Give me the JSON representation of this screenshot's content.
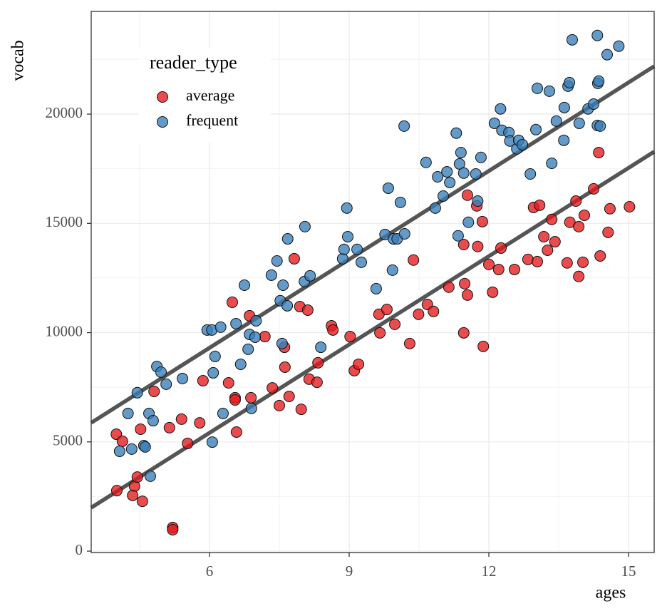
{
  "chart_data": {
    "type": "scatter",
    "x_label": "ages",
    "y_label": "vocab",
    "legend_title": "reader_type",
    "legend": "top-left",
    "xlim": [
      3.46,
      15.55
    ],
    "ylim": [
      -65,
      24700
    ],
    "xticks": [
      6,
      9,
      12,
      15
    ],
    "yticks": [
      0,
      5000,
      10000,
      15000,
      20000
    ],
    "minor_xticks": [
      4.5,
      7.5,
      10.5,
      13.5
    ],
    "minor_yticks": [
      2500,
      7500,
      12500,
      17500,
      22500
    ],
    "grid": true,
    "series": [
      {
        "name": "average",
        "color": "#e41a1c",
        "x": [
          4.0,
          4.13,
          4.01,
          4.39,
          4.45,
          4.35,
          4.56,
          4.52,
          4.81,
          5.14,
          5.21,
          5.21,
          5.4,
          5.53,
          5.79,
          5.86,
          6.41,
          6.49,
          6.55,
          6.55,
          6.58,
          6.86,
          6.89,
          7.19,
          7.35,
          7.5,
          7.61,
          7.62,
          7.71,
          7.82,
          7.94,
          7.97,
          8.11,
          8.14,
          8.31,
          8.33,
          8.62,
          8.65,
          9.02,
          9.11,
          9.2,
          9.64,
          9.66,
          9.81,
          9.98,
          10.3,
          10.38,
          10.49,
          10.68,
          10.81,
          11.14,
          11.46,
          11.46,
          11.54,
          11.54,
          11.48,
          11.74,
          11.76,
          11.86,
          11.88,
          12.0,
          12.08,
          12.21,
          12.26,
          12.55,
          12.84,
          12.96,
          13.04,
          13.09,
          13.18,
          13.26,
          13.35,
          13.42,
          13.68,
          13.74,
          13.87,
          13.93,
          13.93,
          14.02,
          14.05,
          14.25,
          14.36,
          14.39,
          14.56,
          14.6,
          15.02
        ],
        "values": [
          5350,
          5030,
          2770,
          2970,
          3390,
          2550,
          2280,
          5580,
          7310,
          5650,
          1080,
          980,
          6040,
          4930,
          5870,
          7800,
          7700,
          11390,
          7020,
          6920,
          5450,
          10770,
          7020,
          9820,
          7470,
          6660,
          9330,
          8420,
          7080,
          13380,
          11190,
          6490,
          11030,
          7870,
          7730,
          8620,
          10310,
          10120,
          9820,
          8260,
          8550,
          10840,
          9990,
          11060,
          10380,
          9500,
          13320,
          10840,
          11290,
          10970,
          12080,
          9990,
          14030,
          16290,
          11720,
          12240,
          15800,
          13940,
          15080,
          9370,
          13120,
          11850,
          12890,
          13870,
          12890,
          13350,
          15730,
          13250,
          15830,
          14390,
          13770,
          15180,
          14160,
          13190,
          15050,
          16020,
          14850,
          12570,
          13220,
          15370,
          16580,
          18240,
          13510,
          14590,
          15670,
          15760
        ]
      },
      {
        "name": "frequent",
        "color": "#377eb8",
        "x": [
          4.07,
          4.25,
          4.33,
          4.45,
          4.59,
          4.62,
          4.7,
          4.73,
          4.79,
          4.87,
          4.96,
          5.07,
          5.42,
          5.95,
          6.05,
          6.06,
          6.08,
          6.12,
          6.24,
          6.29,
          6.57,
          6.67,
          6.75,
          6.83,
          6.86,
          6.9,
          6.98,
          7.0,
          7.33,
          7.45,
          7.52,
          7.56,
          7.58,
          7.67,
          7.68,
          8.04,
          8.05,
          8.16,
          8.39,
          8.86,
          8.89,
          8.95,
          8.97,
          9.17,
          9.26,
          9.58,
          9.77,
          9.84,
          9.93,
          9.95,
          10.03,
          10.1,
          10.19,
          10.18,
          10.65,
          10.85,
          10.9,
          11.02,
          11.1,
          11.16,
          11.3,
          11.34,
          11.37,
          11.4,
          11.46,
          11.56,
          11.72,
          11.76,
          11.83,
          12.12,
          12.25,
          12.28,
          12.43,
          12.45,
          12.6,
          12.64,
          12.72,
          12.89,
          13.01,
          13.04,
          13.3,
          13.35,
          13.45,
          13.61,
          13.62,
          13.7,
          13.73,
          13.79,
          13.94,
          14.13,
          14.25,
          14.33,
          14.34,
          14.36,
          14.33,
          14.39,
          14.54,
          14.79
        ],
        "values": [
          4570,
          6300,
          4670,
          7250,
          4830,
          4770,
          6300,
          3430,
          5970,
          8450,
          8190,
          7640,
          7900,
          10120,
          10120,
          4990,
          8160,
          8910,
          10250,
          6300,
          10410,
          8550,
          12170,
          9240,
          9920,
          6530,
          9790,
          10540,
          12630,
          13280,
          11460,
          9500,
          12170,
          11230,
          14290,
          12340,
          14850,
          12600,
          9330,
          13380,
          13810,
          15700,
          14390,
          13810,
          13220,
          12010,
          14490,
          16610,
          12860,
          14290,
          14290,
          15960,
          14520,
          19450,
          17790,
          15700,
          17130,
          16250,
          17360,
          16870,
          19130,
          14430,
          17720,
          18240,
          17300,
          15050,
          17260,
          16020,
          18020,
          19580,
          20240,
          19260,
          19160,
          18770,
          18410,
          18800,
          18600,
          17260,
          19290,
          21180,
          21050,
          17750,
          19680,
          18800,
          20300,
          21280,
          21440,
          23400,
          19580,
          20240,
          20460,
          23600,
          21410,
          21510,
          19480,
          19450,
          22720,
          23110
        ]
      }
    ],
    "fit_lines": [
      {
        "color": "#555555",
        "x": [
          3.46,
          15.55
        ],
        "values": [
          5875,
          22190
        ]
      },
      {
        "color": "#555555",
        "x": [
          3.46,
          15.55
        ],
        "values": [
          1990,
          18280
        ]
      }
    ]
  }
}
